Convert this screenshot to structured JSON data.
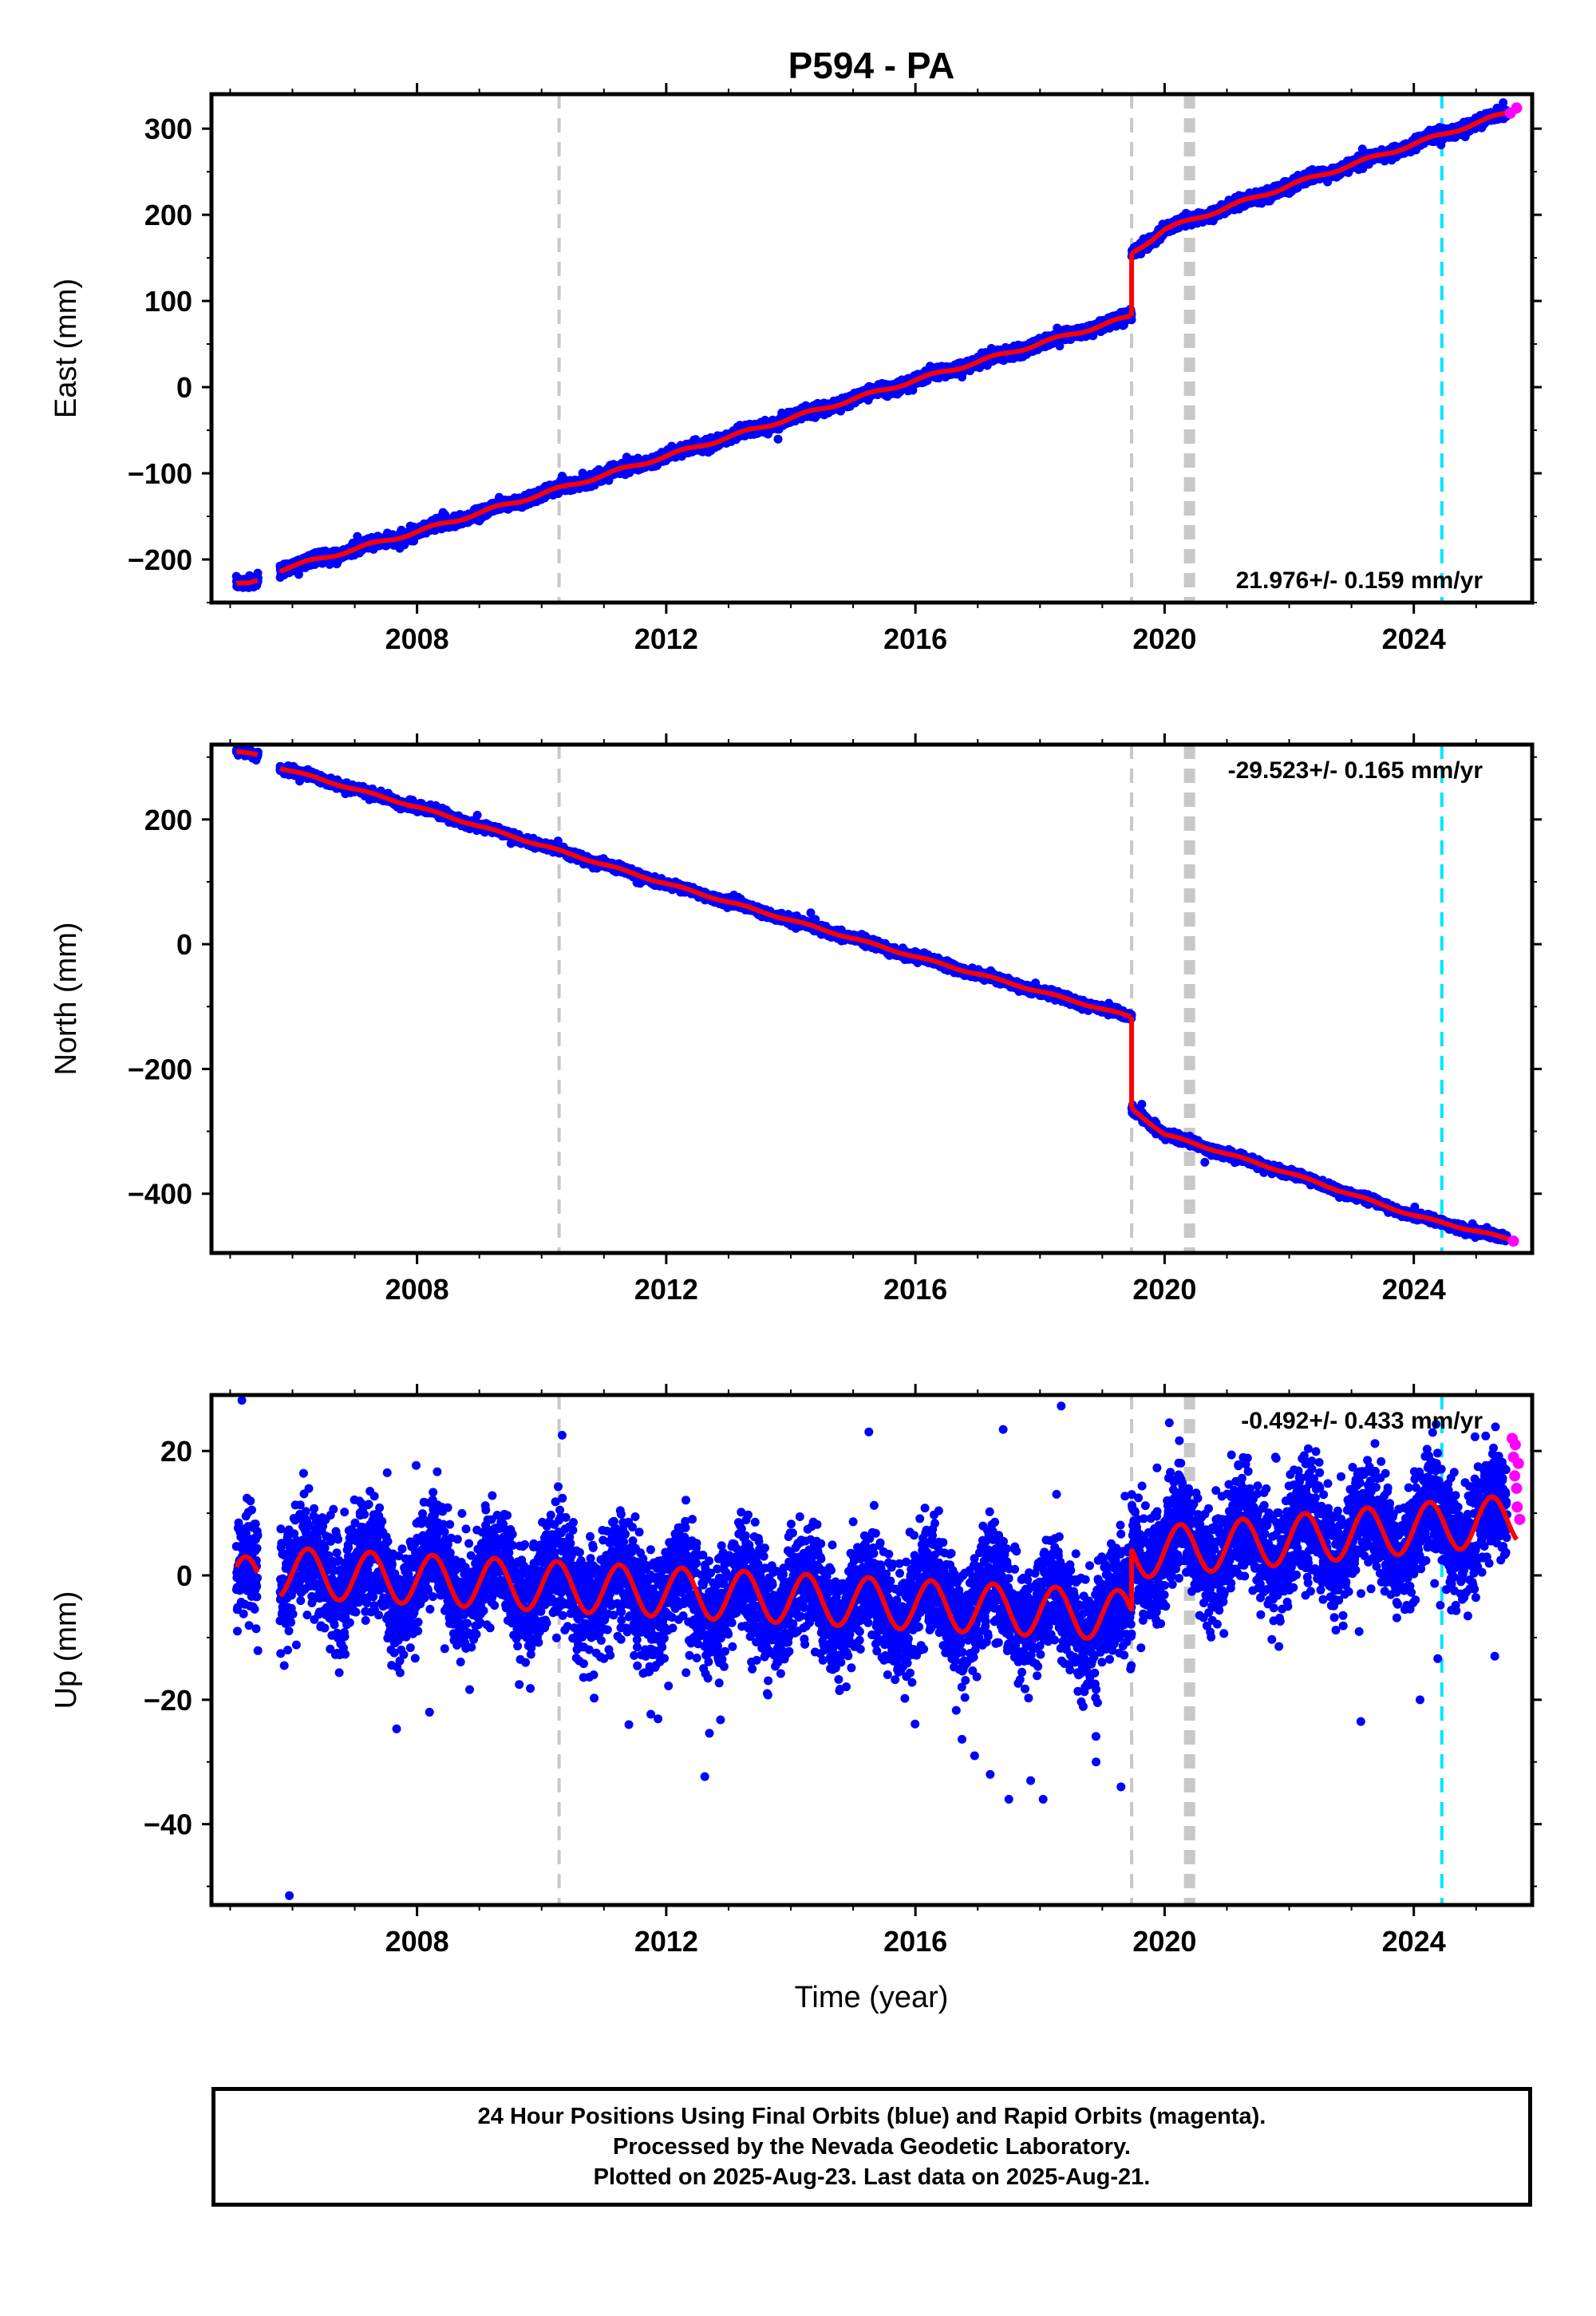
{
  "station_title": "P594 - PA",
  "x_axis_label": "Time (year)",
  "footer": {
    "line1": "24 Hour Positions Using Final Orbits (blue) and Rapid Orbits (magenta).",
    "line2": "Processed by the Nevada Geodetic Laboratory.",
    "line3": "Plotted on 2025-Aug-23. Last data on 2025-Aug-21."
  },
  "colors": {
    "final_orbits": "#0000ff",
    "rapid_orbits": "#ff00ff",
    "model_fit": "#ff0000",
    "event_line": "#c8c8c8",
    "cyan_event_line": "#00e5ff"
  },
  "chart_data": [
    {
      "type": "scatter",
      "component": "east",
      "ylabel": "East (mm)",
      "xlim": [
        2004.7,
        2025.9
      ],
      "ylim": [
        -250,
        340
      ],
      "xticks": [
        2008,
        2012,
        2016,
        2020,
        2024
      ],
      "yticks": [
        -200,
        -100,
        0,
        100,
        200,
        300
      ],
      "velocity_label": "21.976+/- 0.159 mm/yr",
      "velocity_position": "bottom-right",
      "gaps": [
        [
          2005.45,
          2005.8
        ]
      ],
      "model_segments": [
        {
          "x": [
            2005.1,
            2005.3,
            2005.45
          ],
          "y": [
            -229,
            -229,
            -225
          ]
        },
        {
          "x": [
            2005.8,
            2008,
            2012,
            2016,
            2019.47
          ],
          "y": [
            -212,
            -168,
            -80,
            8,
            82
          ]
        },
        {
          "x": [
            2019.47,
            2020,
            2022,
            2024,
            2025.65
          ],
          "y": [
            155,
            183,
            234,
            282,
            322
          ]
        }
      ],
      "seasonal_amplitude": 2,
      "noise": 3,
      "outliers": [],
      "rapid_orbits": {
        "x": [
          2025.55,
          2025.65
        ],
        "y": [
          318,
          324
        ]
      },
      "event_lines_gray": [
        2010.28,
        2019.47
      ],
      "event_lines_gray_thick": [
        2020.4
      ],
      "event_lines_cyan": [
        2024.45
      ]
    },
    {
      "type": "scatter",
      "component": "north",
      "ylabel": "North (mm)",
      "xlim": [
        2004.7,
        2025.9
      ],
      "ylim": [
        -495,
        320
      ],
      "xticks": [
        2008,
        2012,
        2016,
        2020,
        2024
      ],
      "yticks": [
        -400,
        -200,
        0,
        200
      ],
      "velocity_label": "-29.523+/- 0.165 mm/yr",
      "velocity_position": "top-right",
      "gaps": [
        [
          2005.45,
          2005.8
        ]
      ],
      "model_segments": [
        {
          "x": [
            2005.1,
            2005.45
          ],
          "y": [
            308,
            303
          ]
        },
        {
          "x": [
            2005.8,
            2008,
            2012,
            2016,
            2019.47
          ],
          "y": [
            283,
            220,
            97,
            -20,
            -117
          ]
        },
        {
          "x": [
            2019.47,
            2020,
            2022,
            2024,
            2025.65
          ],
          "y": [
            -263,
            -305,
            -367,
            -435,
            -476
          ]
        }
      ],
      "seasonal_amplitude": 1.5,
      "noise": 3,
      "outliers": [],
      "rapid_orbits": {
        "x": [
          2025.6
        ],
        "y": [
          -476
        ]
      },
      "event_lines_gray": [
        2010.28,
        2019.47
      ],
      "event_lines_gray_thick": [
        2020.4
      ],
      "event_lines_cyan": [
        2024.45
      ]
    },
    {
      "type": "scatter",
      "component": "up",
      "ylabel": "Up (mm)",
      "xlim": [
        2004.7,
        2025.9
      ],
      "ylim": [
        -53,
        29
      ],
      "xticks": [
        2008,
        2012,
        2016,
        2020,
        2024
      ],
      "yticks": [
        -40,
        -20,
        0,
        20
      ],
      "velocity_label": "-0.492+/- 0.433 mm/yr",
      "velocity_position": "top-right",
      "gaps": [
        [
          2005.45,
          2005.8
        ]
      ],
      "model_segments": [
        {
          "x": [
            2005.1,
            2005.45
          ],
          "y": [
            -1,
            -1
          ]
        },
        {
          "x": [
            2005.8,
            2019.47
          ],
          "y": [
            0.5,
            -6.5
          ]
        },
        {
          "x": [
            2019.47,
            2025.65
          ],
          "y": [
            3.5,
            9
          ]
        }
      ],
      "seasonal_amplitude": 4,
      "noise": 4.5,
      "outliers": [
        {
          "x": [
            2005.95,
            2008.2,
            2011.4,
            2016.95,
            2017.2,
            2017.5,
            2017.85,
            2018.05,
            2018.9,
            2019.3,
            2023.15,
            2024.1,
            2025.3
          ],
          "y": [
            -51.5,
            -22,
            -24,
            -29,
            -32,
            -36,
            -33,
            -36,
            -30,
            -34,
            -23.5,
            -20,
            -13
          ]
        }
      ],
      "rapid_orbits": {
        "x": [
          2025.58,
          2025.6,
          2025.62,
          2025.63,
          2025.65,
          2025.66,
          2025.68,
          2025.7
        ],
        "y": [
          22,
          19,
          16,
          21,
          14,
          11,
          18,
          9
        ]
      },
      "event_lines_gray": [
        2010.28,
        2019.47
      ],
      "event_lines_gray_thick": [
        2020.4
      ],
      "event_lines_cyan": [
        2024.45
      ]
    }
  ]
}
